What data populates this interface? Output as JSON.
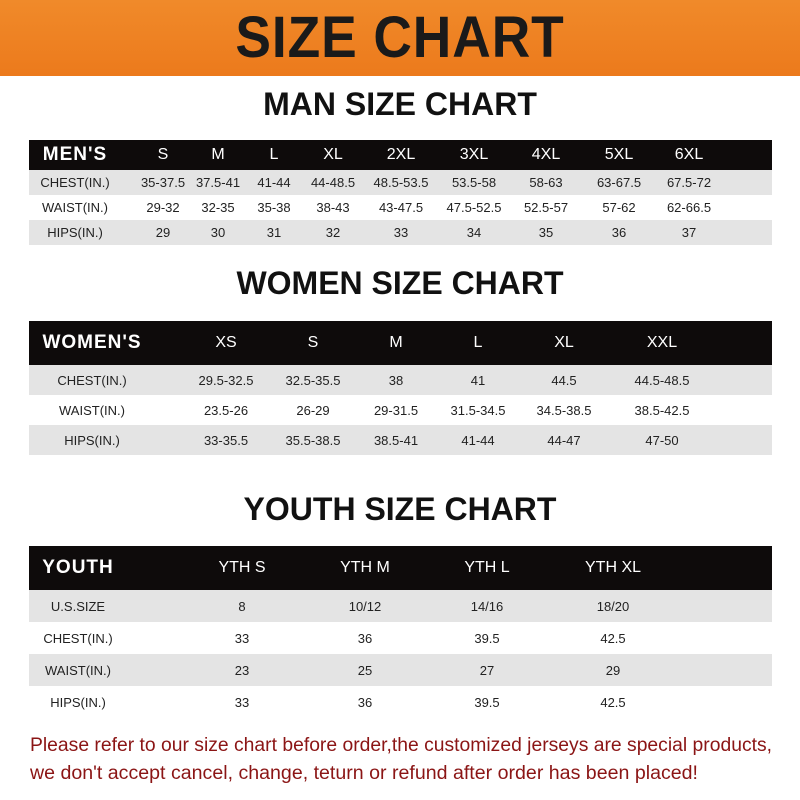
{
  "banner": {
    "title": "SIZE CHART",
    "color": "#ee8022"
  },
  "men": {
    "title": "MAN SIZE CHART",
    "header": [
      "MEN'S",
      "S",
      "M",
      "L",
      "XL",
      "2XL",
      "3XL",
      "4XL",
      "5XL",
      "6XL"
    ],
    "rows": [
      [
        "CHEST(IN.)",
        "35-37.5",
        "37.5-41",
        "41-44",
        "44-48.5",
        "48.5-53.5",
        "53.5-58",
        "58-63",
        "63-67.5",
        "67.5-72"
      ],
      [
        "WAIST(IN.)",
        "29-32",
        "32-35",
        "35-38",
        "38-43",
        "43-47.5",
        "47.5-52.5",
        "52.5-57",
        "57-62",
        "62-66.5"
      ],
      [
        "HIPS(IN.)",
        "29",
        "30",
        "31",
        "32",
        "33",
        "34",
        "35",
        "36",
        "37"
      ]
    ]
  },
  "women": {
    "title": "WOMEN SIZE CHART",
    "header": [
      "WOMEN'S",
      "XS",
      "S",
      "M",
      "L",
      "XL",
      "XXL"
    ],
    "rows": [
      [
        "CHEST(IN.)",
        "29.5-32.5",
        "32.5-35.5",
        "38",
        "41",
        "44.5",
        "44.5-48.5"
      ],
      [
        "WAIST(IN.)",
        "23.5-26",
        "26-29",
        "29-31.5",
        "31.5-34.5",
        "34.5-38.5",
        "38.5-42.5"
      ],
      [
        "HIPS(IN.)",
        "33-35.5",
        "35.5-38.5",
        "38.5-41",
        "41-44",
        "44-47",
        "47-50"
      ]
    ]
  },
  "youth": {
    "title": "YOUTH SIZE CHART",
    "header": [
      "YOUTH",
      "YTH S",
      "YTH M",
      "YTH L",
      "YTH XL"
    ],
    "rows": [
      [
        "U.S.SIZE",
        "8",
        "10/12",
        "14/16",
        "18/20"
      ],
      [
        "CHEST(IN.)",
        "33",
        "36",
        "39.5",
        "42.5"
      ],
      [
        "WAIST(IN.)",
        "23",
        "25",
        "27",
        "29"
      ],
      [
        "HIPS(IN.)",
        "33",
        "36",
        "39.5",
        "42.5"
      ]
    ]
  },
  "footer": {
    "line1": "Please refer to our size chart before order,the customized jerseys are special products,",
    "line2": "we don't accept cancel, change, teturn or refund after order has been placed!",
    "color": "#8b1515"
  }
}
